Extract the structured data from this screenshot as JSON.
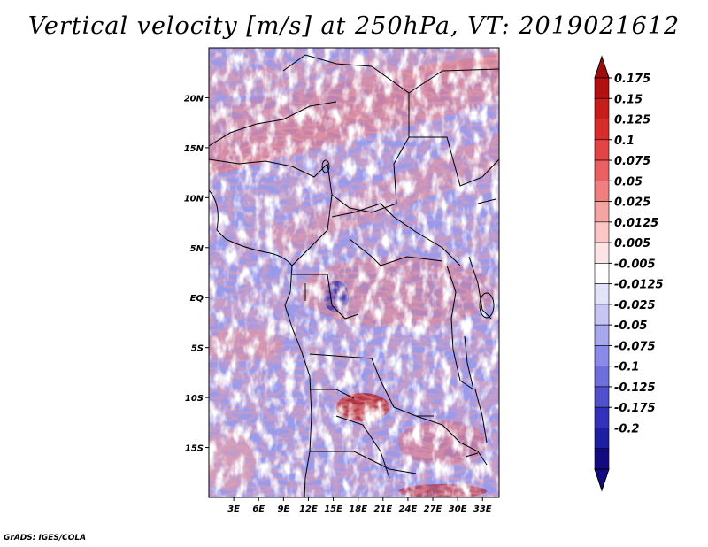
{
  "title": "Vertical velocity [m/s] at 250hPa, VT: 2019021612",
  "credit": "GrADS: IGES/COLA",
  "axes": {
    "lat_labels": [
      "20N",
      "15N",
      "10N",
      "5N",
      "EQ",
      "5S",
      "10S",
      "15S"
    ],
    "lat_values": [
      20,
      15,
      10,
      5,
      0,
      -5,
      -10,
      -15
    ],
    "lon_labels": [
      "3E",
      "6E",
      "9E",
      "12E",
      "15E",
      "18E",
      "21E",
      "24E",
      "27E",
      "30E",
      "33E"
    ],
    "lon_values": [
      3,
      6,
      9,
      12,
      15,
      18,
      21,
      24,
      27,
      30,
      33
    ],
    "lat_range": [
      -20,
      25
    ],
    "lon_range": [
      0,
      35
    ]
  },
  "colorbar": {
    "labels": [
      "0.175",
      "0.15",
      "0.125",
      "0.1",
      "0.075",
      "0.05",
      "0.025",
      "0.0125",
      "0.005",
      "-0.005",
      "-0.0125",
      "-0.025",
      "-0.05",
      "-0.075",
      "-0.1",
      "-0.125",
      "-0.175",
      "-0.2"
    ],
    "colors": [
      "#b01010",
      "#c51c1c",
      "#d62c2c",
      "#e04444",
      "#e86060",
      "#ef8080",
      "#f5a4a4",
      "#fac6c6",
      "#fde4e4",
      "#ffffff",
      "#e2e2fb",
      "#c6c6f5",
      "#a8a8ee",
      "#8a8ae8",
      "#6e6edc",
      "#5050cc",
      "#3232b8",
      "#1e1ea0",
      "#140a80"
    ],
    "top_color": "#a00a0a",
    "bottom_color": "#140a80"
  }
}
